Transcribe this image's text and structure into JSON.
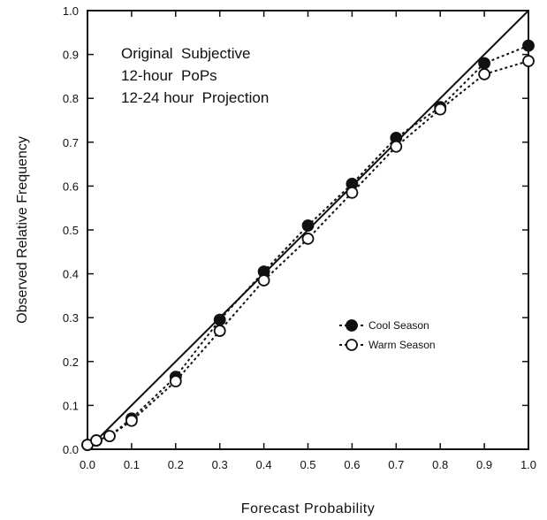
{
  "chart_data": {
    "type": "line",
    "title": "",
    "xlabel": "Forecast Probability",
    "ylabel": "Observed Relative Frequency",
    "xlim": [
      0.0,
      1.0
    ],
    "ylim": [
      0.0,
      1.0
    ],
    "x_ticks": [
      "0.0",
      "0.1",
      "0.2",
      "0.3",
      "0.4",
      "0.5",
      "0.6",
      "0.7",
      "0.8",
      "0.9",
      "1.0"
    ],
    "y_ticks": [
      "0.0",
      "0.1",
      "0.2",
      "0.3",
      "0.4",
      "0.5",
      "0.6",
      "0.7",
      "0.8",
      "0.9",
      "1.0"
    ],
    "grid": false,
    "legend_position": "lower-right",
    "annotation_lines": [
      "Original  Subjective",
      "12-hour  PoPs",
      "12-24 hour  Projection"
    ],
    "reference_line": {
      "x": [
        0.0,
        1.0
      ],
      "y": [
        0.0,
        1.0
      ],
      "style": "solid"
    },
    "series": [
      {
        "name": "Cool Season",
        "marker": "filled-circle",
        "line_style": "dotted",
        "color": "#111111",
        "x": [
          0.0,
          0.02,
          0.05,
          0.1,
          0.2,
          0.3,
          0.4,
          0.5,
          0.6,
          0.7,
          0.8,
          0.9,
          1.0
        ],
        "y": [
          0.01,
          0.02,
          0.03,
          0.07,
          0.165,
          0.295,
          0.405,
          0.51,
          0.605,
          0.71,
          0.78,
          0.88,
          0.92
        ]
      },
      {
        "name": "Warm Season",
        "marker": "open-circle",
        "line_style": "dotted",
        "color": "#111111",
        "x": [
          0.0,
          0.02,
          0.05,
          0.1,
          0.2,
          0.3,
          0.4,
          0.5,
          0.6,
          0.7,
          0.8,
          0.9,
          1.0
        ],
        "y": [
          0.01,
          0.02,
          0.03,
          0.065,
          0.155,
          0.27,
          0.385,
          0.48,
          0.585,
          0.69,
          0.775,
          0.855,
          0.885
        ]
      }
    ]
  }
}
